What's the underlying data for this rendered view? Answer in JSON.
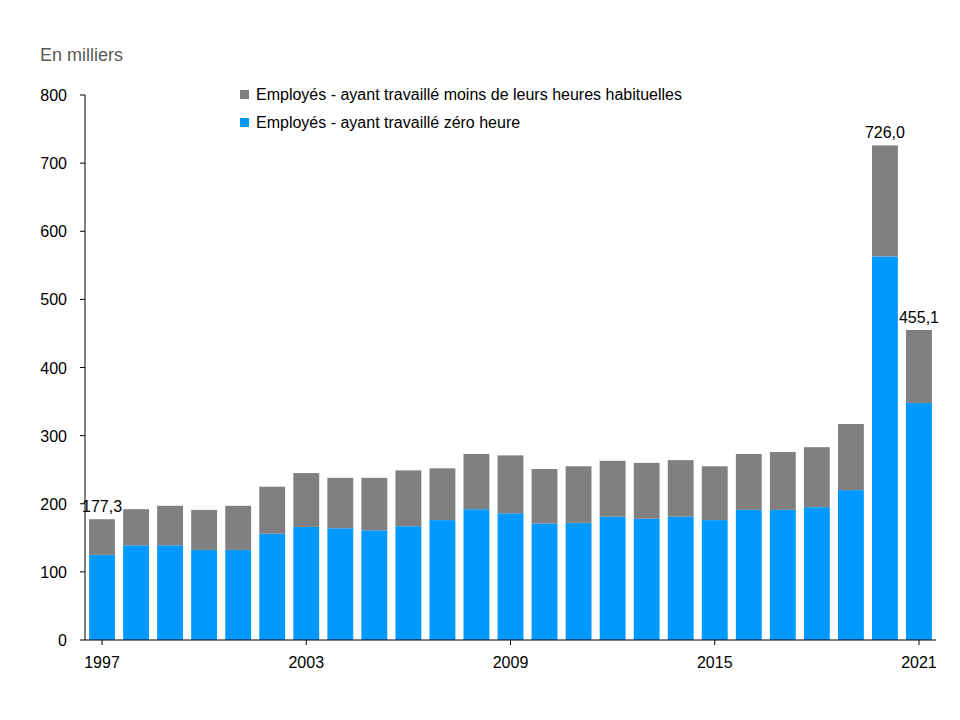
{
  "chart_data": {
    "type": "bar",
    "stacked": true,
    "legend": "top",
    "grid": false,
    "y_label": "En milliers",
    "categories": [
      "1997",
      null,
      null,
      null,
      null,
      null,
      "2003",
      null,
      null,
      null,
      null,
      null,
      "2009",
      null,
      null,
      null,
      null,
      null,
      "2015",
      null,
      null,
      null,
      null,
      null,
      "2021"
    ],
    "series": [
      {
        "name": "Employés - ayant travaillé zéro heure",
        "color": "#0099ff",
        "values": [
          125,
          139,
          139,
          132,
          132,
          156,
          166,
          164,
          161,
          167,
          176,
          192,
          186,
          171,
          172,
          181,
          178,
          181,
          176,
          191,
          191,
          195,
          220,
          563,
          348
        ]
      },
      {
        "name": "Employés - ayant travaillé moins de leurs heures habituelles",
        "color": "#808080",
        "values": [
          52.3,
          53,
          58,
          59,
          65,
          69,
          79,
          74,
          77,
          82,
          76,
          81,
          85,
          80,
          83,
          82,
          82,
          83,
          79,
          82,
          85,
          88,
          97,
          163,
          107.1
        ]
      }
    ],
    "annotations": [
      {
        "index": 0,
        "value": 177.3,
        "label": "177,3"
      },
      {
        "index": 23,
        "value": 726.0,
        "label": "726,0"
      },
      {
        "index": 24,
        "value": 455.1,
        "label": "455,1"
      }
    ],
    "ylim": [
      0,
      800
    ],
    "yticks": [
      0,
      100,
      200,
      300,
      400,
      500,
      600,
      700,
      800
    ]
  }
}
